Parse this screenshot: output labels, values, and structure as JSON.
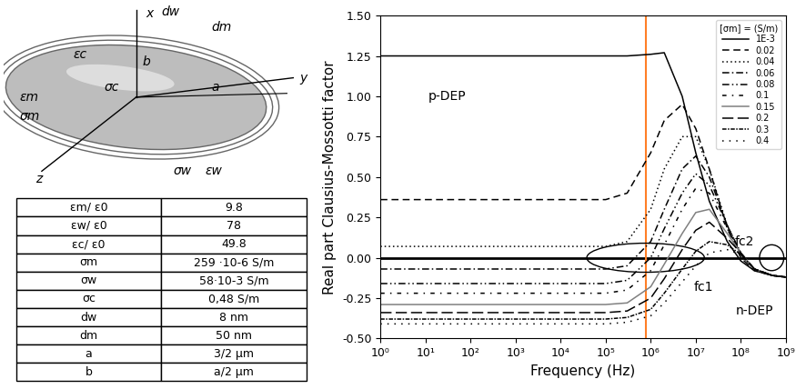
{
  "chart_data": {
    "type": "line",
    "x_label": "Frequency (Hz)",
    "y_label": "Real part Clausius-Mossotti factor",
    "log": "x",
    "xlim": [
      1,
      1000000000
    ],
    "xticks": [
      {
        "value": 1,
        "label": "10⁰"
      },
      {
        "value": 10,
        "label": "10¹"
      },
      {
        "value": 100,
        "label": "10²"
      },
      {
        "value": 1000,
        "label": "10³"
      },
      {
        "value": 10000,
        "label": "10⁴"
      },
      {
        "value": 100000,
        "label": "10⁵"
      },
      {
        "value": 1000000,
        "label": "10⁶"
      },
      {
        "value": 10000000,
        "label": "10⁷"
      },
      {
        "value": 100000000,
        "label": "10⁸"
      },
      {
        "value": 1000000000,
        "label": "10⁹"
      }
    ],
    "ylim": [
      -0.5,
      1.5
    ],
    "yticks": [
      {
        "value": -0.5,
        "label": "-0.50"
      },
      -0.25,
      {
        "value": 0,
        "label": "0.00"
      },
      0.25,
      {
        "value": 0.5,
        "label": "0.50"
      },
      0.75,
      {
        "value": 1.0,
        "label": "1.00"
      },
      1.25,
      {
        "value": 1.5,
        "label": "1.50"
      }
    ],
    "legend": "upper right",
    "legend_title": "[σm] = (S/m)",
    "x": [
      1,
      100000,
      300000,
      1000000,
      2000000,
      5000000,
      10000000,
      20000000,
      50000000,
      100000000,
      200000000,
      500000000,
      1000000000
    ],
    "series": [
      {
        "name": "1E-3",
        "color": "#000000",
        "line_style": "solid",
        "values": [
          1.25,
          1.25,
          1.25,
          1.26,
          1.27,
          1.0,
          0.65,
          0.35,
          0.1,
          -0.02,
          -0.08,
          -0.11,
          -0.12
        ]
      },
      {
        "name": "0.02",
        "color": "#000000",
        "line_style": "dashed",
        "values": [
          0.36,
          0.36,
          0.4,
          0.65,
          0.85,
          0.95,
          0.8,
          0.55,
          0.18,
          0.0,
          -0.08,
          -0.11,
          -0.12
        ]
      },
      {
        "name": "0.04",
        "color": "#000000",
        "line_style": "dotted",
        "values": [
          0.07,
          0.07,
          0.1,
          0.3,
          0.55,
          0.75,
          0.75,
          0.55,
          0.2,
          0.02,
          -0.07,
          -0.11,
          -0.12
        ]
      },
      {
        "name": "0.06",
        "color": "#000000",
        "line_style": "dashdot",
        "values": [
          -0.07,
          -0.07,
          -0.05,
          0.1,
          0.3,
          0.55,
          0.63,
          0.5,
          0.2,
          0.02,
          -0.07,
          -0.11,
          -0.12
        ]
      },
      {
        "name": "0.08",
        "color": "#000000",
        "line_style": "dashdotdot",
        "values": [
          -0.16,
          -0.16,
          -0.14,
          0.0,
          0.18,
          0.4,
          0.52,
          0.45,
          0.2,
          0.03,
          -0.07,
          -0.11,
          -0.12
        ]
      },
      {
        "name": "0.1",
        "color": "#000000",
        "line_style": "loosedashdot",
        "values": [
          -0.22,
          -0.22,
          -0.2,
          -0.08,
          0.08,
          0.3,
          0.43,
          0.4,
          0.18,
          0.03,
          -0.07,
          -0.11,
          -0.12
        ]
      },
      {
        "name": "0.15",
        "color": "#808080",
        "line_style": "solid",
        "values": [
          -0.29,
          -0.29,
          -0.28,
          -0.18,
          -0.04,
          0.15,
          0.28,
          0.3,
          0.15,
          0.03,
          -0.07,
          -0.11,
          -0.12
        ]
      },
      {
        "name": "0.2",
        "color": "#000000",
        "line_style": "longdash",
        "values": [
          -0.34,
          -0.34,
          -0.33,
          -0.25,
          -0.13,
          0.05,
          0.17,
          0.22,
          0.12,
          0.03,
          -0.07,
          -0.11,
          -0.12
        ]
      },
      {
        "name": "0.3",
        "color": "#000000",
        "line_style": "densedashdot",
        "values": [
          -0.38,
          -0.38,
          -0.37,
          -0.32,
          -0.22,
          -0.07,
          0.04,
          0.1,
          0.08,
          0.02,
          -0.07,
          -0.11,
          -0.12
        ]
      },
      {
        "name": "0.4",
        "color": "#000000",
        "line_style": "loosedotted",
        "values": [
          -0.41,
          -0.41,
          -0.4,
          -0.36,
          -0.28,
          -0.15,
          -0.05,
          0.03,
          0.05,
          0.02,
          -0.07,
          -0.11,
          -0.12
        ]
      }
    ],
    "reference_lines": [
      {
        "axis": "y",
        "value": 0,
        "color": "#000000"
      },
      {
        "axis": "x",
        "value": 800000,
        "color": "#ff7f27"
      }
    ],
    "annotations": [
      {
        "text": "p-DEP",
        "x": 30,
        "y": 1.0
      },
      {
        "text": "n-DEP",
        "x": 200000000,
        "y": -0.33
      },
      {
        "text": "fc1",
        "x": 15000000,
        "y": -0.18
      },
      {
        "text": "fc2",
        "x": 120000000,
        "y": 0.1
      }
    ]
  },
  "diagram": {
    "labels": [
      "x",
      "dw",
      "dm",
      "b",
      "εc",
      "σc",
      "a",
      "y",
      "εm",
      "σm",
      "z",
      "σw",
      "εw"
    ]
  },
  "table": {
    "rows": [
      [
        "εm/ ε0",
        "9.8"
      ],
      [
        "εw/ ε0",
        "78"
      ],
      [
        "εc/ ε0",
        "49.8"
      ],
      [
        "σm",
        "259 ·10-6 S/m"
      ],
      [
        "σw",
        "58·10-3 S/m"
      ],
      [
        "σc",
        "0,48 S/m"
      ],
      [
        "dw",
        "8 nm"
      ],
      [
        "dm",
        "50 nm"
      ],
      [
        "a",
        "3/2 μm"
      ],
      [
        "b",
        "a/2 μm"
      ]
    ]
  }
}
